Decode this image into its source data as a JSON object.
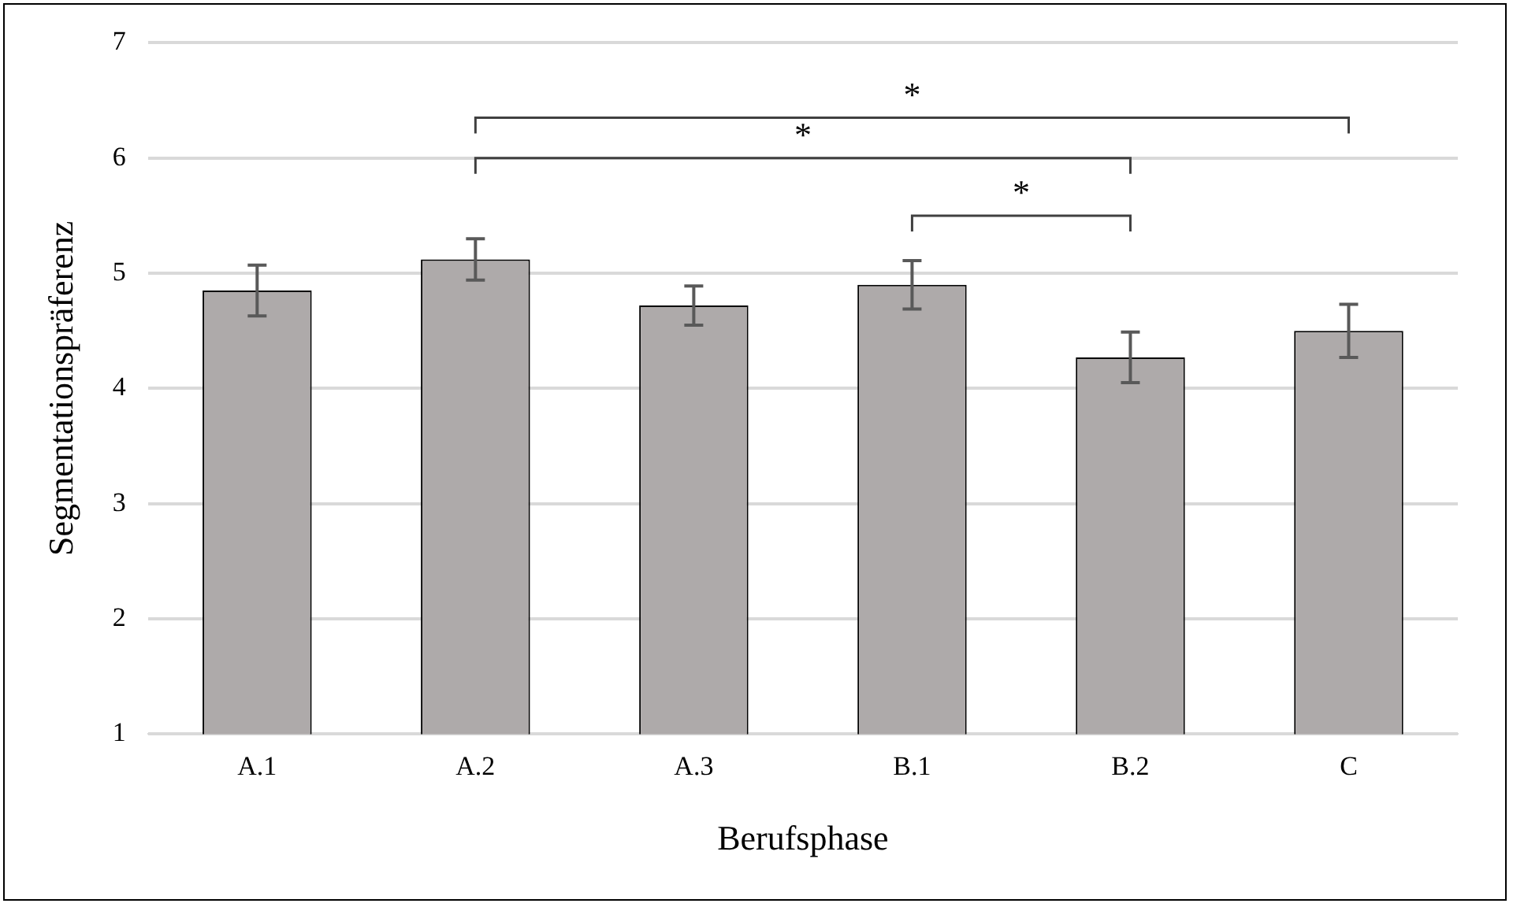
{
  "chart_data": {
    "type": "bar",
    "xlabel": "Berufsphase",
    "ylabel": "Segmentationspräferenz",
    "categories": [
      "A.1",
      "A.2",
      "A.3",
      "B.1",
      "B.2",
      "C"
    ],
    "values": [
      4.85,
      5.12,
      4.72,
      4.9,
      4.27,
      4.5
    ],
    "errors": [
      0.22,
      0.18,
      0.17,
      0.21,
      0.22,
      0.23
    ],
    "color": "#aeaaaa",
    "ylim": [
      1,
      7
    ],
    "yticks": [
      1,
      2,
      3,
      4,
      5,
      6,
      7
    ],
    "grid": "y",
    "annotations": [
      "*",
      "*",
      "*"
    ]
  }
}
